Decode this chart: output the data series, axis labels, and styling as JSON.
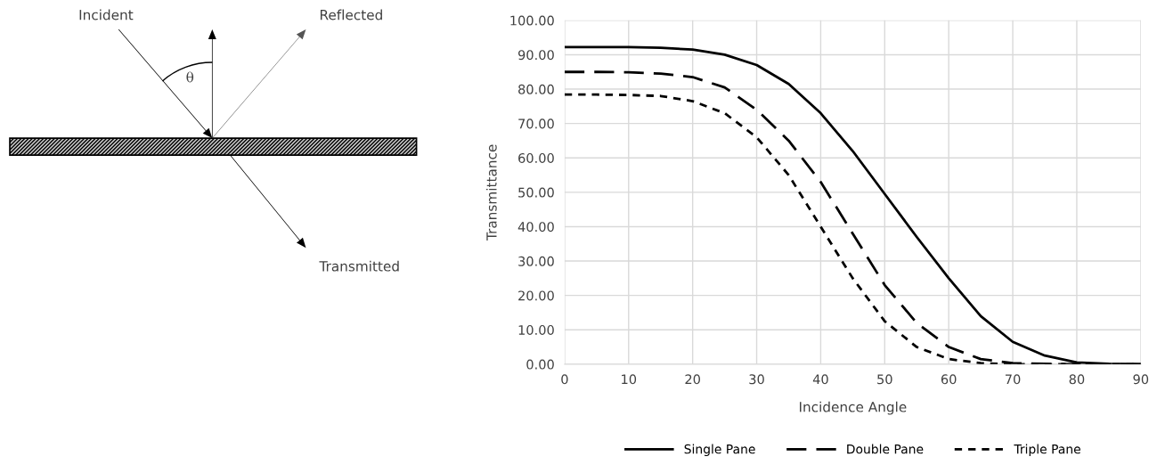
{
  "chart_data": [
    {
      "type": "other",
      "annotations": [
        "Incident",
        "θ",
        "Reflected",
        "Transmitted"
      ]
    },
    {
      "type": "line",
      "xlabel": "Incidence Angle",
      "ylabel": "Transmittance",
      "x": [
        0,
        5,
        10,
        15,
        20,
        25,
        30,
        35,
        40,
        45,
        50,
        55,
        60,
        65,
        70,
        75,
        80,
        85,
        90
      ],
      "xlim": [
        0,
        90
      ],
      "xticks": [
        0,
        10,
        20,
        30,
        40,
        50,
        60,
        70,
        80,
        90
      ],
      "ylim": [
        0,
        100
      ],
      "yticks": [
        {
          "value": 0,
          "label": "0.00"
        },
        {
          "value": 10,
          "label": "10.00"
        },
        {
          "value": 20,
          "label": "20.00"
        },
        {
          "value": 30,
          "label": "30.00"
        },
        {
          "value": 40,
          "label": "40.00"
        },
        {
          "value": 50,
          "label": "50.00"
        },
        {
          "value": 60,
          "label": "60.00"
        },
        {
          "value": 70,
          "label": "70.00"
        },
        {
          "value": 80,
          "label": "80.00"
        },
        {
          "value": 90,
          "label": "90.00"
        },
        {
          "value": 100,
          "label": "100.00"
        }
      ],
      "grid": true,
      "legend": "bottom",
      "marker": "none",
      "series": [
        {
          "name": "Single Pane",
          "color": "#000000",
          "line_style": "solid",
          "values": [
            92.2,
            92.2,
            92.2,
            92.0,
            91.5,
            90,
            87,
            81.5,
            73,
            62,
            49.5,
            37,
            25,
            14,
            6.5,
            2.5,
            0.5,
            0.1,
            0
          ]
        },
        {
          "name": "Double Pane",
          "color": "#000000",
          "line_style": "dashed",
          "values": [
            85,
            85,
            84.9,
            84.5,
            83.5,
            80.5,
            74,
            65,
            53,
            38,
            23,
            12,
            5,
            1.5,
            0.3,
            0.1,
            0,
            0,
            0
          ]
        },
        {
          "name": "Triple Pane",
          "color": "#000000",
          "line_style": "dotted",
          "values": [
            78.4,
            78.4,
            78.3,
            78,
            76.5,
            73,
            66,
            55,
            40,
            25,
            12.5,
            5,
            1.5,
            0.3,
            0,
            0,
            0,
            0,
            0
          ]
        }
      ]
    }
  ]
}
